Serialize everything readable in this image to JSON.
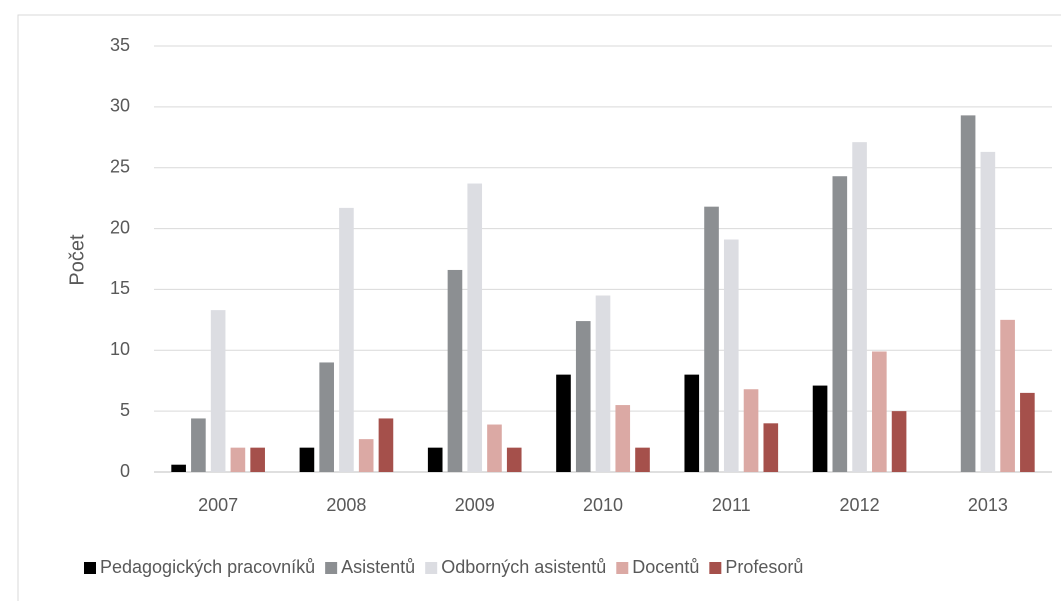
{
  "chart_data": {
    "type": "bar",
    "y_label": "Počet",
    "categories": [
      "2007",
      "2008",
      "2009",
      "2010",
      "2011",
      "2012",
      "2013"
    ],
    "series": [
      {
        "name": "Pedagogických pracovníků",
        "color": "#000000",
        "values": [
          0.6,
          2,
          2,
          8,
          8,
          7.1,
          0
        ]
      },
      {
        "name": "Asistentů",
        "color": "#8c8f92",
        "values": [
          4.4,
          9,
          16.6,
          12.4,
          21.8,
          24.3,
          29.3
        ]
      },
      {
        "name": "Odborných asistentů",
        "color": "#dcdde2",
        "values": [
          13.3,
          21.7,
          23.7,
          14.5,
          19.1,
          27.1,
          26.3
        ]
      },
      {
        "name": "Docentů",
        "color": "#dba9a4",
        "values": [
          2,
          2.7,
          3.9,
          5.5,
          6.8,
          9.9,
          12.5
        ]
      },
      {
        "name": "Profesorů",
        "color": "#a5504b",
        "values": [
          2,
          4.4,
          2,
          2,
          4,
          5,
          6.5
        ]
      }
    ],
    "ylim": [
      0,
      35
    ],
    "yticks": [
      0,
      5,
      10,
      15,
      20,
      25,
      30,
      35
    ],
    "grid": true,
    "legend": "bottom"
  }
}
